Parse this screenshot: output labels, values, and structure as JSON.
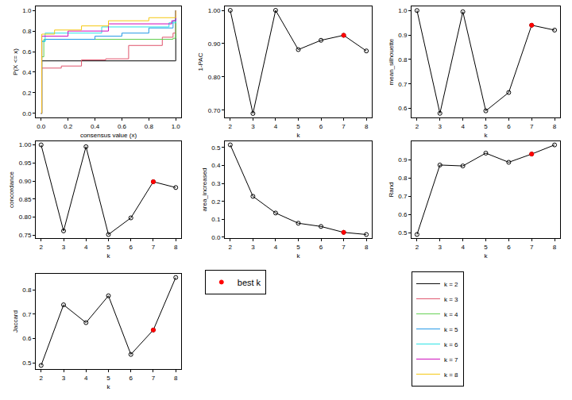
{
  "chart_data": [
    {
      "type": "line",
      "x_label": "consensus value (x)",
      "y_label": "P(X <= x)",
      "legend": "outside",
      "xlim": [
        -0.04,
        1.04
      ],
      "xticks": [
        {
          "value": 0,
          "label": "0.0"
        },
        {
          "value": 0.2,
          "label": "0.2"
        },
        {
          "value": 0.4,
          "label": "0.4"
        },
        {
          "value": 0.6,
          "label": "0.6"
        },
        {
          "value": 0.8,
          "label": "0.8"
        },
        {
          "value": 1,
          "label": "1.0"
        }
      ],
      "ylim": [
        -0.04,
        1.04
      ],
      "yticks": [
        {
          "value": 0,
          "label": "0.0"
        },
        {
          "value": 0.2,
          "label": "0.2"
        },
        {
          "value": 0.4,
          "label": "0.4"
        },
        {
          "value": 0.6,
          "label": "0.6"
        },
        {
          "value": 0.8,
          "label": "0.8"
        },
        {
          "value": 1,
          "label": "1.0"
        }
      ],
      "series": [
        {
          "name": "k = 2",
          "color": "#000000",
          "line_style": "step",
          "marker": "none",
          "x": [
            0,
            0.005,
            0.995,
            1
          ],
          "values": [
            0,
            0.51,
            0.51,
            1
          ]
        },
        {
          "name": "k = 3",
          "color": "#DF536B",
          "line_style": "step",
          "marker": "none",
          "x": [
            0,
            0.005,
            0.15,
            0.3,
            0.48,
            0.65,
            0.9,
            0.98,
            1
          ],
          "values": [
            0,
            0.44,
            0.46,
            0.52,
            0.53,
            0.66,
            0.74,
            0.78,
            1
          ]
        },
        {
          "name": "k = 4",
          "color": "#61D04F",
          "line_style": "step",
          "marker": "none",
          "x": [
            0,
            0.005,
            0.02,
            0.98,
            1
          ],
          "values": [
            0,
            0.55,
            0.72,
            0.73,
            1
          ]
        },
        {
          "name": "k = 5",
          "color": "#2297E6",
          "line_style": "step",
          "marker": "none",
          "x": [
            0,
            0.005,
            0.03,
            0.4,
            0.6,
            0.8,
            0.98,
            1
          ],
          "values": [
            0,
            0.7,
            0.72,
            0.75,
            0.78,
            0.83,
            0.9,
            1
          ]
        },
        {
          "name": "k = 6",
          "color": "#28E2E5",
          "line_style": "step",
          "marker": "none",
          "x": [
            0,
            0.005,
            0.03,
            0.45,
            0.95,
            1
          ],
          "values": [
            0,
            0.7,
            0.78,
            0.84,
            0.88,
            1
          ]
        },
        {
          "name": "k = 7",
          "color": "#CD0BBC",
          "line_style": "step",
          "marker": "none",
          "x": [
            0,
            0.005,
            0.2,
            0.5,
            0.97,
            1
          ],
          "values": [
            0,
            0.75,
            0.8,
            0.87,
            0.9,
            1
          ]
        },
        {
          "name": "k = 8",
          "color": "#F5C710",
          "line_style": "step",
          "marker": "none",
          "x": [
            0,
            0.005,
            0.1,
            0.3,
            0.5,
            0.8,
            1
          ],
          "values": [
            0,
            0.77,
            0.81,
            0.85,
            0.9,
            0.93,
            1
          ]
        }
      ]
    },
    {
      "type": "line",
      "x_label": "k",
      "y_label": "1-PAC",
      "x": [
        2,
        3,
        4,
        5,
        6,
        7,
        8
      ],
      "xlim": [
        1.76,
        8.24
      ],
      "xticks": [
        2,
        3,
        4,
        5,
        6,
        7,
        8
      ],
      "ylim": [
        0.678,
        1.012
      ],
      "yticks": [
        {
          "value": 0.7,
          "label": "0.70"
        },
        {
          "value": 0.8,
          "label": "0.80"
        },
        {
          "value": 0.9,
          "label": "0.90"
        },
        {
          "value": 1,
          "label": "1.00"
        }
      ],
      "series": [
        {
          "color": "#000000",
          "line_style": "solid",
          "marker": "open_circle",
          "values": [
            1.0,
            0.69,
            1.0,
            0.882,
            0.91,
            0.925,
            0.878
          ]
        },
        {
          "name": "best k",
          "color": "#ff0000",
          "line_style": "none",
          "marker": "filled_circle",
          "values": [
            null,
            null,
            null,
            null,
            null,
            0.925,
            null
          ]
        }
      ]
    },
    {
      "type": "line",
      "x_label": "k",
      "y_label": "mean_silhouette",
      "x": [
        2,
        3,
        4,
        5,
        6,
        7,
        8
      ],
      "xlim": [
        1.76,
        8.24
      ],
      "xticks": [
        2,
        3,
        4,
        5,
        6,
        7,
        8
      ],
      "ylim": [
        0.563,
        1.017
      ],
      "yticks": [
        0.6,
        0.7,
        0.8,
        0.9,
        {
          "value": 1,
          "label": "1.0"
        }
      ],
      "series": [
        {
          "color": "#000000",
          "line_style": "solid",
          "marker": "open_circle",
          "values": [
            1.0,
            0.58,
            0.995,
            0.59,
            0.665,
            0.94,
            0.92
          ]
        },
        {
          "name": "best k",
          "color": "#ff0000",
          "line_style": "none",
          "marker": "filled_circle",
          "values": [
            null,
            null,
            null,
            null,
            null,
            0.94,
            null
          ]
        }
      ]
    },
    {
      "type": "line",
      "x_label": "k",
      "y_label": "concordance",
      "x": [
        2,
        3,
        4,
        5,
        6,
        7,
        8
      ],
      "xlim": [
        1.76,
        8.24
      ],
      "xticks": [
        2,
        3,
        4,
        5,
        6,
        7,
        8
      ],
      "ylim": [
        0.742,
        1.01
      ],
      "yticks": [
        0.75,
        {
          "value": 0.8,
          "label": "0.80"
        },
        0.85,
        {
          "value": 0.9,
          "label": "0.90"
        },
        0.95,
        {
          "value": 1,
          "label": "1.00"
        }
      ],
      "series": [
        {
          "color": "#000000",
          "line_style": "solid",
          "marker": "open_circle",
          "values": [
            1.0,
            0.762,
            0.995,
            0.752,
            0.798,
            0.898,
            0.882
          ]
        },
        {
          "name": "best k",
          "color": "#ff0000",
          "line_style": "none",
          "marker": "filled_circle",
          "values": [
            null,
            null,
            null,
            null,
            null,
            0.898,
            null
          ]
        }
      ]
    },
    {
      "type": "line",
      "x_label": "k",
      "y_label": "area_increased",
      "x": [
        2,
        3,
        4,
        5,
        6,
        7,
        8
      ],
      "xlim": [
        1.76,
        8.24
      ],
      "xticks": [
        2,
        3,
        4,
        5,
        6,
        7,
        8
      ],
      "ylim": [
        -0.005,
        0.535
      ],
      "yticks": [
        {
          "value": 0,
          "label": "0.0"
        },
        0.1,
        0.2,
        0.3,
        0.4,
        0.5
      ],
      "series": [
        {
          "color": "#000000",
          "line_style": "solid",
          "marker": "open_circle",
          "values": [
            0.515,
            0.228,
            0.135,
            0.078,
            0.06,
            0.027,
            0.015
          ]
        },
        {
          "name": "best k",
          "color": "#ff0000",
          "line_style": "none",
          "marker": "filled_circle",
          "values": [
            null,
            null,
            null,
            null,
            null,
            0.027,
            null
          ]
        }
      ]
    },
    {
      "type": "line",
      "x_label": "k",
      "y_label": "Rand",
      "x": [
        2,
        3,
        4,
        5,
        6,
        7,
        8
      ],
      "xlim": [
        1.76,
        8.24
      ],
      "xticks": [
        2,
        3,
        4,
        5,
        6,
        7,
        8
      ],
      "ylim": [
        0.47,
        1.0
      ],
      "yticks": [
        0.5,
        0.6,
        0.7,
        0.8,
        0.9
      ],
      "series": [
        {
          "color": "#000000",
          "line_style": "solid",
          "marker": "open_circle",
          "values": [
            0.49,
            0.87,
            0.865,
            0.935,
            0.885,
            0.93,
            0.98
          ]
        },
        {
          "name": "best k",
          "color": "#ff0000",
          "line_style": "none",
          "marker": "filled_circle",
          "values": [
            null,
            null,
            null,
            null,
            null,
            0.93,
            null
          ]
        }
      ]
    },
    {
      "type": "line",
      "x_label": "k",
      "y_label": "Jaccard",
      "x": [
        2,
        3,
        4,
        5,
        6,
        7,
        8
      ],
      "xlim": [
        1.76,
        8.24
      ],
      "xticks": [
        2,
        3,
        4,
        5,
        6,
        7,
        8
      ],
      "ylim": [
        0.475,
        0.865
      ],
      "yticks": [
        0.5,
        0.6,
        0.7,
        0.8
      ],
      "series": [
        {
          "color": "#000000",
          "line_style": "solid",
          "marker": "open_circle",
          "values": [
            0.49,
            0.738,
            0.665,
            0.775,
            0.535,
            0.635,
            0.85
          ]
        },
        {
          "name": "best k",
          "color": "#ff0000",
          "line_style": "none",
          "marker": "filled_circle",
          "values": [
            null,
            null,
            null,
            null,
            null,
            0.635,
            null
          ]
        }
      ]
    }
  ]
}
